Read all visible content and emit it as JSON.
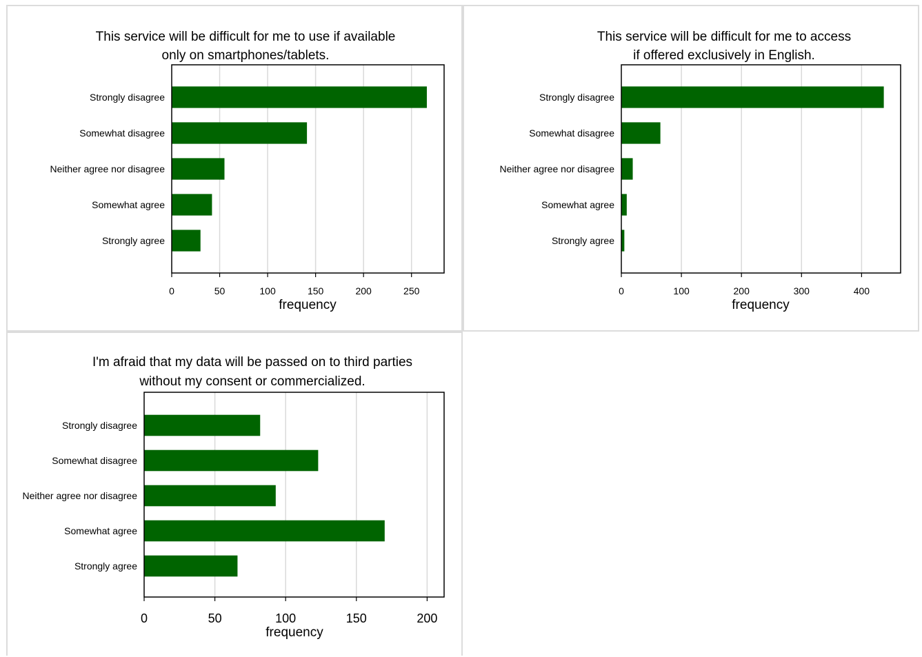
{
  "chart_data": [
    {
      "type": "bar",
      "orientation": "horizontal",
      "title": "This service will be difficult for me to use if available only on smartphones/tablets.",
      "title_lines": [
        "This service will be difficult for me to use if available",
        "only on smartphones/tablets."
      ],
      "categories": [
        "Strongly disagree",
        "Somewhat disagree",
        "Neither agree nor disagree",
        "Somewhat agree",
        "Strongly agree"
      ],
      "values": [
        266,
        141,
        55,
        42,
        30
      ],
      "xlabel": "frequency",
      "xlim": [
        0,
        284
      ],
      "xticks": [
        0,
        50,
        100,
        150,
        200,
        250
      ],
      "grid": true,
      "bar_color": "#006400"
    },
    {
      "type": "bar",
      "orientation": "horizontal",
      "title": "This service will be difficult for me to access if offered exclusively in English.",
      "title_lines": [
        "This service will be difficult for me to access",
        "if offered exclusively in English."
      ],
      "categories": [
        "Strongly disagree",
        "Somewhat disagree",
        "Neither agree nor disagree",
        "Somewhat agree",
        "Strongly agree"
      ],
      "values": [
        437,
        65,
        19,
        9,
        5
      ],
      "xlabel": "frequency",
      "xlim": [
        0,
        465
      ],
      "xticks": [
        0,
        100,
        200,
        300,
        400
      ],
      "grid": true,
      "bar_color": "#006400"
    },
    {
      "type": "bar",
      "orientation": "horizontal",
      "title": "I'm afraid that my data will be passed on to third parties without my consent or commercialized.",
      "title_lines": [
        "I'm afraid that my data will be passed on to third parties",
        "without my consent or commercialized."
      ],
      "categories": [
        "Strongly disagree",
        "Somewhat disagree",
        "Neither agree nor disagree",
        "Somewhat agree",
        "Strongly agree"
      ],
      "values": [
        82,
        123,
        93,
        170,
        66
      ],
      "xlabel": "frequency",
      "xlim": [
        0,
        212
      ],
      "xticks": [
        0,
        50,
        100,
        150,
        200
      ],
      "grid": true,
      "bar_color": "#006400"
    }
  ]
}
